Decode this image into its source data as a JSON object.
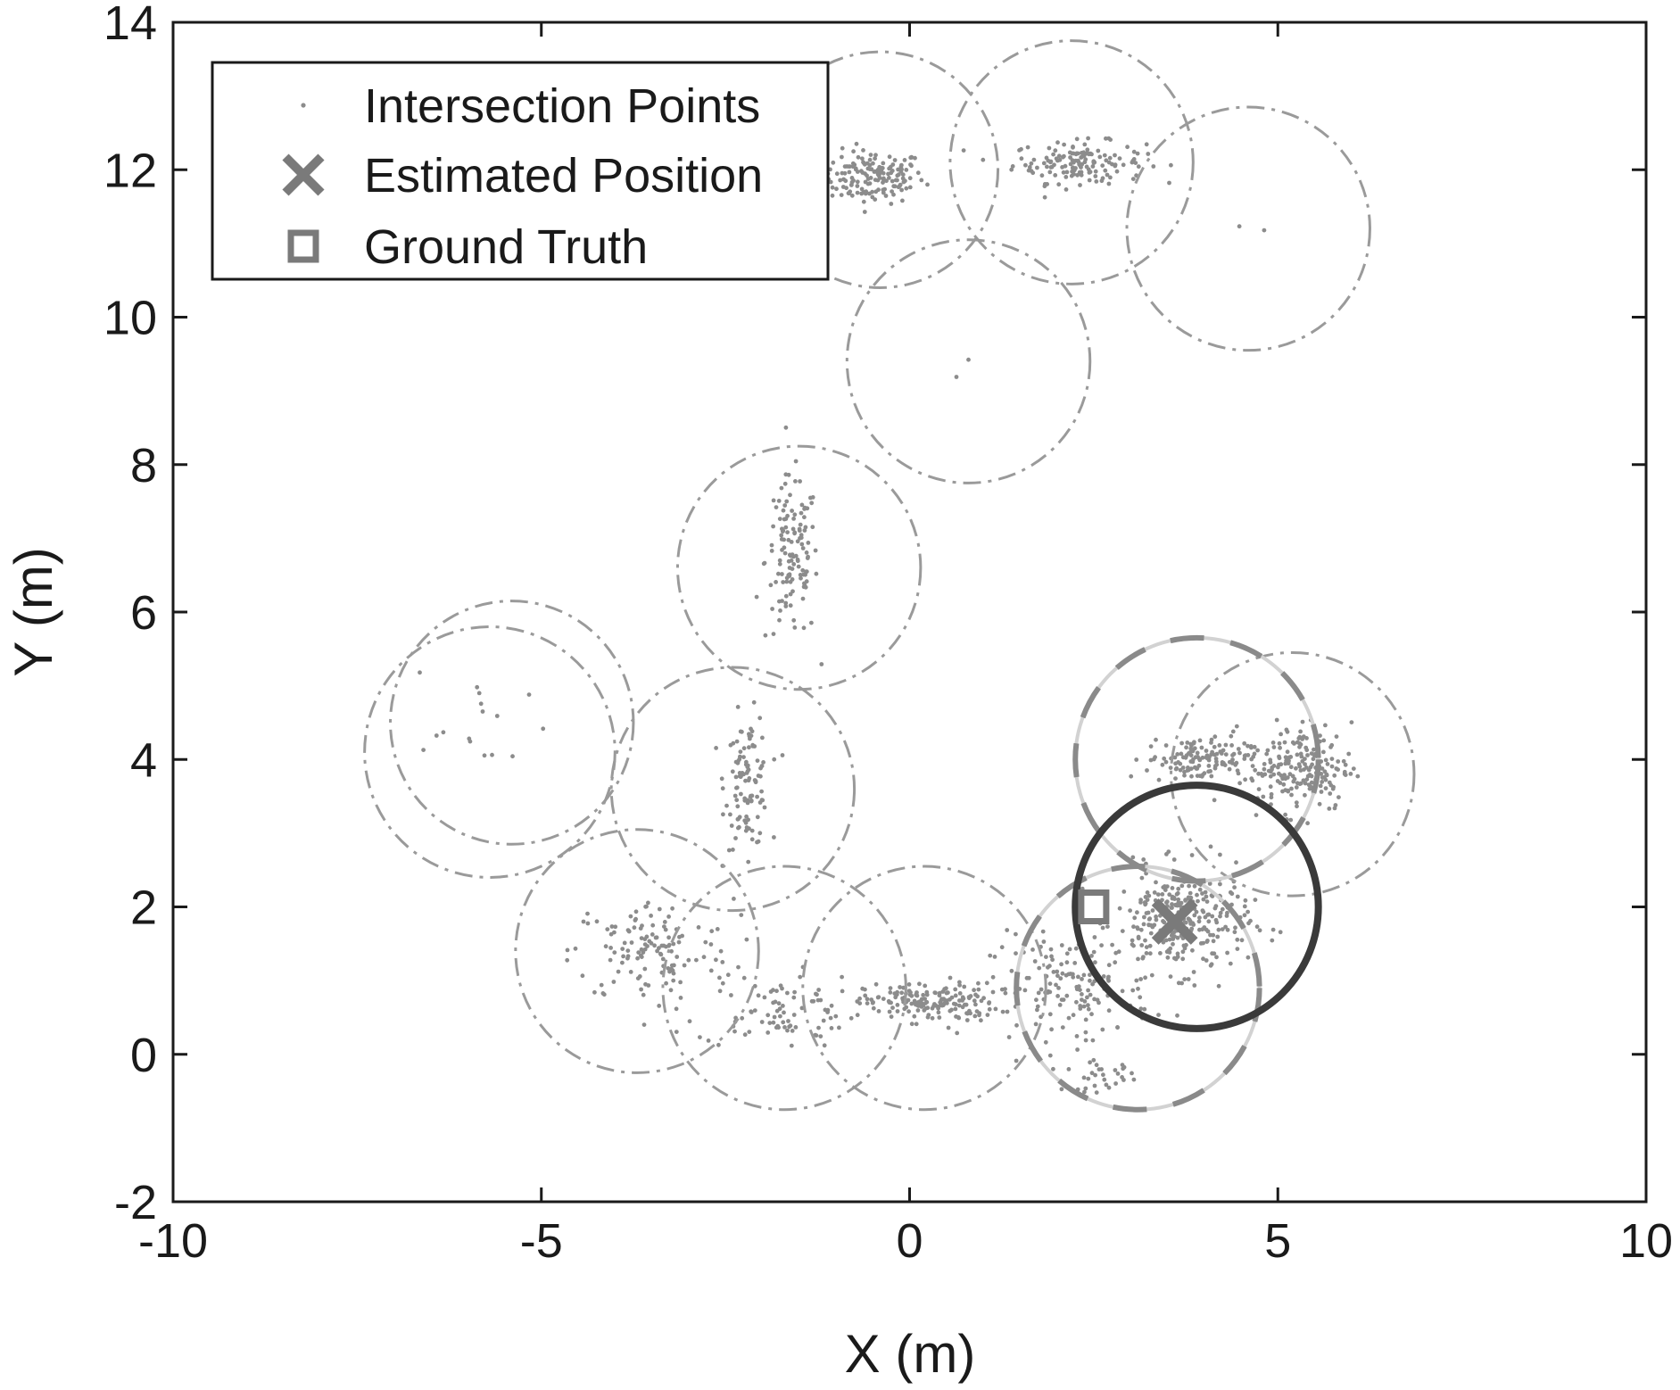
{
  "chart_data": {
    "type": "scatter",
    "xlabel": "X (m)",
    "ylabel": "Y (m)",
    "xlim": [
      -10,
      10
    ],
    "ylim": [
      -2,
      14
    ],
    "x_ticks": [
      -10,
      -5,
      0,
      5,
      10
    ],
    "y_ticks": [
      -2,
      0,
      2,
      4,
      6,
      8,
      10,
      12,
      14
    ],
    "x_tick_labels": [
      "-10",
      "-5",
      "0",
      "5",
      "10"
    ],
    "y_tick_labels": [
      "-2",
      "0",
      "2",
      "4",
      "6",
      "8",
      "10",
      "12",
      "14"
    ],
    "grid": false,
    "legend": {
      "placement": "top-left",
      "entries": [
        {
          "label": "Intersection Points",
          "marker": "dot"
        },
        {
          "label": "Estimated Position",
          "marker": "x"
        },
        {
          "label": "Ground Truth",
          "marker": "square"
        }
      ]
    },
    "colors": {
      "points": "#8c8c8c",
      "estimate": "#7a7a7a",
      "ground_truth": "#7a7a7a",
      "range_circle": "#9a9a9a",
      "bold_circle": "#3a3a3a",
      "dashed_circle": "#8a8a8a",
      "light_circle": "#d2d2d2",
      "axis": "#1a1a1a"
    },
    "range_circles": [
      {
        "cx": -0.4,
        "cy": 12.0,
        "r": 1.6
      },
      {
        "cx": 2.2,
        "cy": 12.1,
        "r": 1.65
      },
      {
        "cx": 4.6,
        "cy": 11.2,
        "r": 1.65
      },
      {
        "cx": 0.8,
        "cy": 9.4,
        "r": 1.65
      },
      {
        "cx": -1.5,
        "cy": 6.6,
        "r": 1.65
      },
      {
        "cx": -5.4,
        "cy": 4.5,
        "r": 1.65
      },
      {
        "cx": -5.7,
        "cy": 4.1,
        "r": 1.7
      },
      {
        "cx": -2.4,
        "cy": 3.6,
        "r": 1.65
      },
      {
        "cx": -3.7,
        "cy": 1.4,
        "r": 1.65
      },
      {
        "cx": -1.7,
        "cy": 0.9,
        "r": 1.65
      },
      {
        "cx": 0.2,
        "cy": 0.9,
        "r": 1.65
      },
      {
        "cx": 5.2,
        "cy": 3.8,
        "r": 1.65
      }
    ],
    "dashed_circles": [
      {
        "cx": 3.9,
        "cy": 4.0,
        "r": 1.65
      },
      {
        "cx": 3.1,
        "cy": 0.9,
        "r": 1.65
      }
    ],
    "bold_circle": {
      "cx": 3.9,
      "cy": 2.0,
      "r": 1.65
    },
    "estimated_position": {
      "x": 3.6,
      "y": 1.8
    },
    "ground_truth": {
      "x": 2.5,
      "y": 2.0
    },
    "point_clusters": [
      {
        "cx": -0.5,
        "cy": 11.9,
        "sx": 0.35,
        "sy": 0.18,
        "n": 160
      },
      {
        "cx": 2.3,
        "cy": 12.1,
        "sx": 0.45,
        "sy": 0.14,
        "n": 150
      },
      {
        "cx": -1.6,
        "cy": 6.7,
        "sx": 0.18,
        "sy": 0.55,
        "n": 130
      },
      {
        "cx": -2.2,
        "cy": 3.7,
        "sx": 0.15,
        "sy": 0.45,
        "n": 110
      },
      {
        "cx": -3.5,
        "cy": 1.4,
        "sx": 0.55,
        "sy": 0.35,
        "n": 130
      },
      {
        "cx": -1.8,
        "cy": 0.6,
        "sx": 0.55,
        "sy": 0.25,
        "n": 90
      },
      {
        "cx": 0.3,
        "cy": 0.7,
        "sx": 0.45,
        "sy": 0.13,
        "n": 170
      },
      {
        "cx": 2.2,
        "cy": 0.9,
        "sx": 0.55,
        "sy": 0.35,
        "n": 150
      },
      {
        "cx": 2.6,
        "cy": -0.3,
        "sx": 0.25,
        "sy": 0.1,
        "n": 30
      },
      {
        "cx": 3.7,
        "cy": 1.8,
        "sx": 0.45,
        "sy": 0.35,
        "n": 300
      },
      {
        "cx": 3.9,
        "cy": 4.0,
        "sx": 0.35,
        "sy": 0.15,
        "n": 130
      },
      {
        "cx": 5.3,
        "cy": 3.9,
        "sx": 0.35,
        "sy": 0.3,
        "n": 210
      },
      {
        "cx": -5.7,
        "cy": 4.3,
        "sx": 0.5,
        "sy": 0.45,
        "n": 16
      },
      {
        "cx": 0.8,
        "cy": 9.4,
        "sx": 0.1,
        "sy": 0.1,
        "n": 2
      },
      {
        "cx": 4.6,
        "cy": 11.2,
        "sx": 0.1,
        "sy": 0.1,
        "n": 2
      }
    ]
  }
}
